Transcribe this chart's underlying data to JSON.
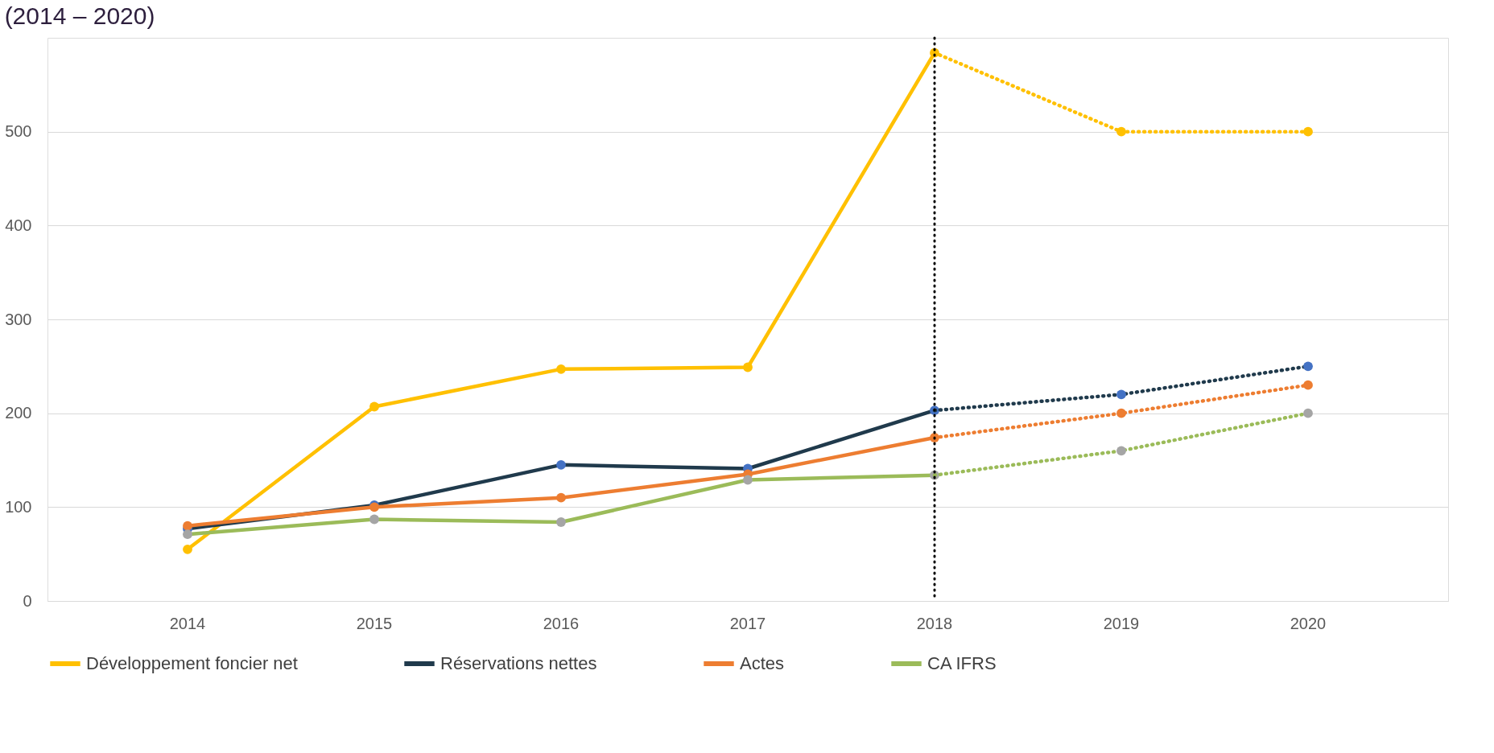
{
  "chart_data": {
    "type": "line",
    "title": "(2014 – 2020)",
    "categories": [
      "2014",
      "2015",
      "2016",
      "2017",
      "2018",
      "2019",
      "2020"
    ],
    "ylim": [
      0,
      600
    ],
    "yticks": [
      0,
      100,
      200,
      300,
      400,
      500
    ],
    "grid": "y",
    "legend": "bottom",
    "marker": "circle",
    "ref_lines": [
      {
        "axis": "x",
        "value": "2018",
        "color": "#000000",
        "line_style": "dotted"
      }
    ],
    "series": [
      {
        "name": "Développement foncier net",
        "color": "#ffc000",
        "colors": [
          "#ffc000",
          "#ffc000",
          "#ffc000",
          "#ffc000",
          "#ffc000",
          null,
          null
        ],
        "line_style": "solid",
        "values": [
          55,
          207,
          247,
          249,
          584,
          null,
          null
        ]
      },
      {
        "name": "Réservations nettes",
        "color": "#203a4c",
        "colors": [
          "#4472c4",
          "#4472c4",
          "#4472c4",
          "#4472c4",
          "#4472c4",
          null,
          null
        ],
        "line_style": "solid",
        "values": [
          77,
          102,
          145,
          141,
          203,
          null,
          null
        ]
      },
      {
        "name": "Actes",
        "color": "#ed7d31",
        "colors": [
          "#ed7d31",
          "#ed7d31",
          "#ed7d31",
          "#ed7d31",
          "#ed7d31",
          null,
          null
        ],
        "line_style": "solid",
        "values": [
          80,
          100,
          110,
          135,
          174,
          null,
          null
        ]
      },
      {
        "name": "CA IFRS",
        "color": "#9bbb59",
        "colors": [
          "#a5a5a5",
          "#a5a5a5",
          "#a5a5a5",
          "#a5a5a5",
          "#a5a5a5",
          null,
          null
        ],
        "line_style": "solid",
        "values": [
          71,
          87,
          84,
          129,
          134,
          null,
          null
        ]
      },
      {
        "color": "#ffc000",
        "colors": [
          null,
          null,
          null,
          null,
          null,
          "#ffc000",
          "#ffc000"
        ],
        "line_style": "dotted",
        "values": [
          null,
          null,
          null,
          null,
          584,
          500,
          500
        ]
      },
      {
        "color": "#203a4c",
        "colors": [
          null,
          null,
          null,
          null,
          null,
          "#4472c4",
          "#4472c4"
        ],
        "line_style": "dotted",
        "values": [
          null,
          null,
          null,
          null,
          203,
          220,
          250
        ]
      },
      {
        "color": "#ed7d31",
        "colors": [
          null,
          null,
          null,
          null,
          null,
          "#ed7d31",
          "#ed7d31"
        ],
        "line_style": "dotted",
        "values": [
          null,
          null,
          null,
          null,
          174,
          200,
          230
        ]
      },
      {
        "color": "#9bbb59",
        "colors": [
          null,
          null,
          null,
          null,
          null,
          "#a5a5a5",
          "#a5a5a5"
        ],
        "line_style": "dotted",
        "values": [
          null,
          null,
          null,
          null,
          134,
          160,
          200
        ]
      }
    ]
  }
}
